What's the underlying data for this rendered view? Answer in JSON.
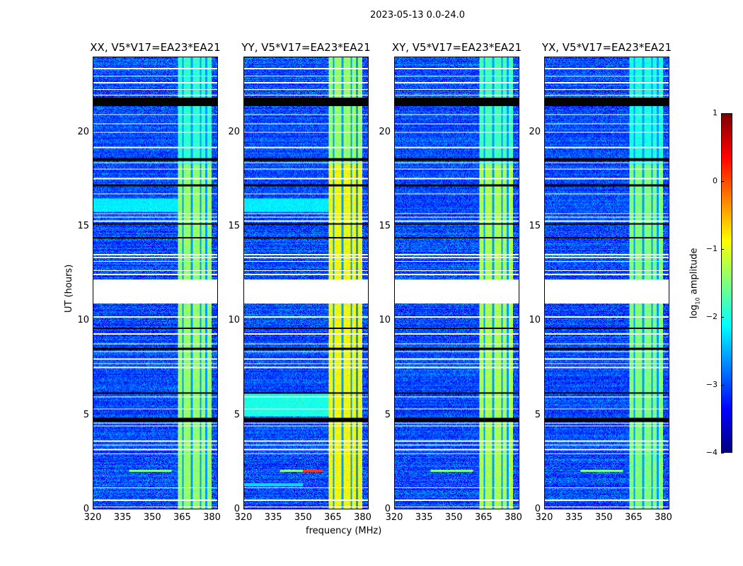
{
  "chart_data": {
    "type": "heatmap",
    "title": "2023-05-13 0.0-24.0",
    "xlabel": "frequency (MHz)",
    "ylabel": "UT (hours)",
    "xlim": [
      320,
      383
    ],
    "ylim": [
      0,
      24
    ],
    "xticks": [
      "320",
      "335",
      "350",
      "365",
      "380"
    ],
    "xtick_values": [
      320,
      335,
      350,
      365,
      380
    ],
    "yticks": [
      "0",
      "5",
      "10",
      "15",
      "20"
    ],
    "ytick_values": [
      0,
      5,
      10,
      15,
      20
    ],
    "panels": [
      {
        "title": "XX, V5*V17=EA23*EA21",
        "band_level": -1.4,
        "lowband_boost": 0
      },
      {
        "title": "YY, V5*V17=EA23*EA21",
        "band_level": -0.9,
        "lowband_boost": 1
      },
      {
        "title": "XY, V5*V17=EA23*EA21",
        "band_level": -1.3,
        "lowband_boost": 0
      },
      {
        "title": "YX, V5*V17=EA23*EA21",
        "band_level": -1.5,
        "lowband_boost": 0
      }
    ],
    "background_level": -3.0,
    "rfi_band_mhz": [
      363,
      380
    ],
    "band_dividers_mhz": [
      365.5,
      370,
      374.5,
      377.5
    ],
    "flagged_gap_hours": [
      [
        10.9,
        12.2
      ]
    ],
    "white_rows_hours": [
      0.1,
      0.45,
      1.1,
      2.9,
      3.15,
      3.4,
      3.6,
      4.4,
      4.55,
      5.3,
      5.95,
      7.5,
      7.7,
      7.95,
      8.35,
      8.75,
      9.3,
      10.2,
      12.45,
      12.65,
      13.15,
      13.35,
      13.5,
      15.3,
      15.5,
      15.7,
      16.75,
      17.55,
      18.05,
      18.4,
      19.2,
      20.0,
      20.45,
      20.95,
      22.0,
      22.3,
      22.65,
      23.0,
      23.4
    ],
    "black_rows_hours": [
      [
        4.6,
        4.85
      ],
      [
        6.1,
        6.2
      ],
      [
        8.45,
        8.55
      ],
      [
        9.55,
        9.65
      ],
      [
        14.35,
        14.45
      ],
      [
        15.1,
        15.2
      ],
      [
        17.15,
        17.25
      ],
      [
        18.5,
        18.65
      ],
      [
        21.4,
        21.85
      ]
    ],
    "colorbar": {
      "label": "log10 amplitude",
      "label_main": "log",
      "label_sub": "10",
      "label_rest": " amplitude",
      "range": [
        -4,
        1
      ],
      "ticks": [
        "1",
        "0",
        "−1",
        "−2",
        "−3",
        "−4"
      ],
      "tick_values": [
        1,
        0,
        -1,
        -2,
        -3,
        -4
      ],
      "colormap": "jet"
    }
  }
}
